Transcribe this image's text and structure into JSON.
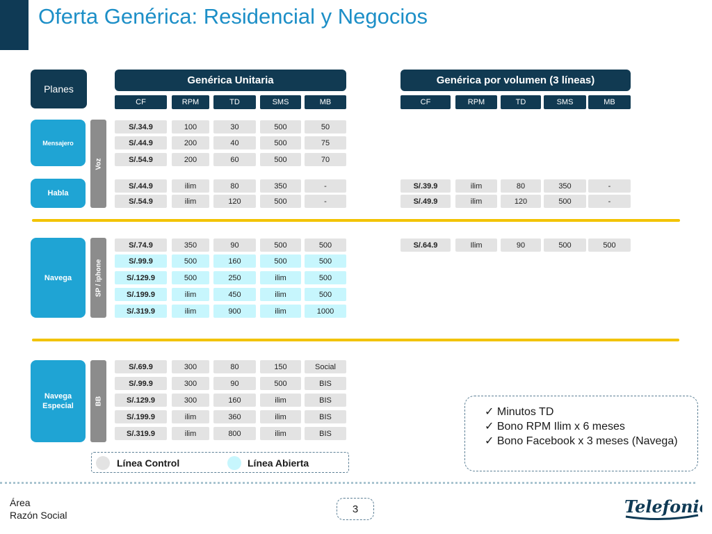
{
  "title": "Oferta Genérica: Residencial y Negocios",
  "planes_label": "Planes",
  "headers": {
    "unitaria": "Genérica Unitaria",
    "volumen": "Genérica por volumen (3 líneas)"
  },
  "columns": [
    "CF",
    "RPM",
    "TD",
    "SMS",
    "MB"
  ],
  "groups": {
    "mensajero": "Mensajero",
    "habla": "Habla",
    "navega": "Navega",
    "navega_especial": "Navega Especial"
  },
  "side_tags": {
    "voz": "Voz",
    "sp": "SP / iphone",
    "bb": "BB"
  },
  "unitaria_rows": [
    [
      "S/.34.9",
      "100",
      "30",
      "500",
      "50"
    ],
    [
      "S/.44.9",
      "200",
      "40",
      "500",
      "75"
    ],
    [
      "S/.54.9",
      "200",
      "60",
      "500",
      "70"
    ],
    [
      "S/.44.9",
      "ilim",
      "80",
      "350",
      "-"
    ],
    [
      "S/.54.9",
      "ilim",
      "120",
      "500",
      "-"
    ],
    [
      "S/.74.9",
      "350",
      "90",
      "500",
      "500"
    ],
    [
      "S/.99.9",
      "500",
      "160",
      "500",
      "500"
    ],
    [
      "S/.129.9",
      "500",
      "250",
      "ilim",
      "500"
    ],
    [
      "S/.199.9",
      "ilim",
      "450",
      "ilim",
      "500"
    ],
    [
      "S/.319.9",
      "ilim",
      "900",
      "ilim",
      "1000"
    ],
    [
      "S/.69.9",
      "300",
      "80",
      "150",
      "Social"
    ],
    [
      "S/.99.9",
      "300",
      "90",
      "500",
      "BIS"
    ],
    [
      "S/.129.9",
      "300",
      "160",
      "ilim",
      "BIS"
    ],
    [
      "S/.199.9",
      "ilim",
      "360",
      "ilim",
      "BIS"
    ],
    [
      "S/.319.9",
      "ilim",
      "800",
      "ilim",
      "BIS"
    ]
  ],
  "volumen_rows": [
    [
      "S/.39.9",
      "ilim",
      "80",
      "350",
      "-"
    ],
    [
      "S/.49.9",
      "ilim",
      "120",
      "500",
      "-"
    ],
    [
      "S/.64.9",
      "Ilim",
      "90",
      "500",
      "500"
    ]
  ],
  "legend": {
    "control": "Línea Control",
    "abierta": "Línea Abierta"
  },
  "colors": {
    "control": "#e3e3e3",
    "abierta": "#c7f6fd",
    "accent": "#f2c300",
    "navy": "#113a52",
    "plan_blue": "#1fa4d4"
  },
  "notes": [
    "Minutos TD",
    "Bono RPM Ilim x 6 meses",
    "Bono Facebook x 3 meses (Navega)"
  ],
  "checkmark": "✓",
  "footer": {
    "line1": "Área",
    "line2": "Razón Social",
    "page": "3"
  },
  "logo_text": "Telefonica"
}
